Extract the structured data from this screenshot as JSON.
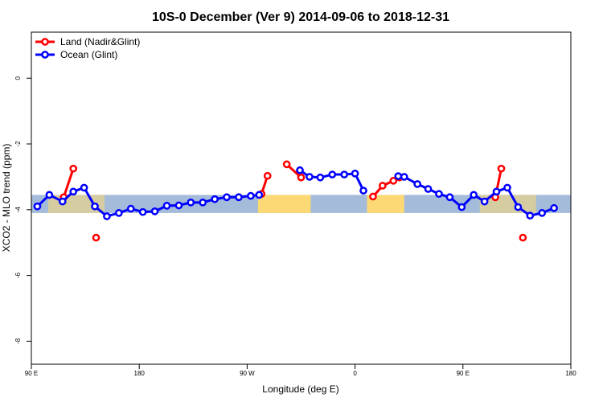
{
  "chart_data": {
    "type": "line",
    "title": "10S-0 December (Ver 9)   2014-09-06 to 2018-12-31",
    "xlabel": "Longitude (deg E)",
    "ylabel": "XCO2 - MLO trend (ppm)",
    "xlim": [
      90,
      540
    ],
    "ylim": [
      -8.7,
      1.4
    ],
    "x_ticks": [
      {
        "value": 90,
        "label": "90 E"
      },
      {
        "value": 180,
        "label": "180"
      },
      {
        "value": 270,
        "label": "90 W"
      },
      {
        "value": 360,
        "label": "0"
      },
      {
        "value": 450,
        "label": "90 E"
      },
      {
        "value": 540,
        "label": "180"
      }
    ],
    "y_ticks": [
      {
        "value": 0,
        "label": "0"
      },
      {
        "value": -2,
        "label": "-2"
      },
      {
        "value": -4,
        "label": "-4"
      },
      {
        "value": -6,
        "label": "-6"
      },
      {
        "value": -8,
        "label": "-8"
      }
    ],
    "grid": false,
    "legend_position": "top-left",
    "background_band": {
      "y_range": [
        -4.1,
        -3.55
      ],
      "ocean_color": "#a4bcd9",
      "land_color": "#fdd975",
      "land_longitudes": [
        [
          104,
          151
        ],
        [
          279,
          323
        ],
        [
          370,
          401
        ],
        [
          464,
          511
        ]
      ]
    },
    "series": [
      {
        "name": "Land (Nadir&Glint)",
        "color": "#ff0000",
        "segments": [
          [
            [
              117,
              -3.62
            ],
            [
              125,
              -2.75
            ]
          ],
          [
            [
              144,
              -4.85
            ]
          ],
          [
            [
              282,
              -3.52
            ],
            [
              287,
              -2.97
            ]
          ],
          [
            [
              303,
              -2.62
            ],
            [
              315,
              -3.02
            ]
          ],
          [
            [
              375,
              -3.6
            ],
            [
              383,
              -3.27
            ],
            [
              392,
              -3.12
            ],
            [
              397,
              -3.02
            ]
          ],
          [
            [
              477,
              -3.62
            ],
            [
              482,
              -2.75
            ]
          ],
          [
            [
              500,
              -4.85
            ]
          ]
        ]
      },
      {
        "name": "Ocean (Glint)",
        "color": "#0000ff",
        "segments": [
          [
            [
              95,
              -3.9
            ],
            [
              105,
              -3.55
            ],
            [
              116,
              -3.75
            ],
            [
              125,
              -3.45
            ],
            [
              134,
              -3.33
            ],
            [
              143,
              -3.9
            ],
            [
              153,
              -4.2
            ],
            [
              163,
              -4.1
            ],
            [
              173,
              -3.97
            ],
            [
              183,
              -4.07
            ],
            [
              193,
              -4.05
            ],
            [
              203,
              -3.88
            ],
            [
              213,
              -3.87
            ],
            [
              223,
              -3.78
            ],
            [
              233,
              -3.78
            ],
            [
              243,
              -3.68
            ],
            [
              253,
              -3.62
            ],
            [
              263,
              -3.62
            ],
            [
              273,
              -3.58
            ],
            [
              280,
              -3.55
            ]
          ],
          [
            [
              314,
              -2.8
            ],
            [
              322,
              -3.0
            ],
            [
              331,
              -3.02
            ],
            [
              341,
              -2.93
            ],
            [
              351,
              -2.93
            ],
            [
              360,
              -2.9
            ],
            [
              367,
              -3.42
            ]
          ],
          [
            [
              396,
              -2.98
            ],
            [
              401,
              -3.0
            ],
            [
              412,
              -3.22
            ],
            [
              421,
              -3.37
            ],
            [
              430,
              -3.52
            ],
            [
              439,
              -3.62
            ],
            [
              449,
              -3.92
            ],
            [
              459,
              -3.55
            ],
            [
              468,
              -3.75
            ],
            [
              478,
              -3.45
            ],
            [
              487,
              -3.33
            ],
            [
              496,
              -3.92
            ],
            [
              506,
              -4.18
            ],
            [
              516,
              -4.1
            ],
            [
              526,
              -3.95
            ]
          ]
        ]
      }
    ]
  }
}
